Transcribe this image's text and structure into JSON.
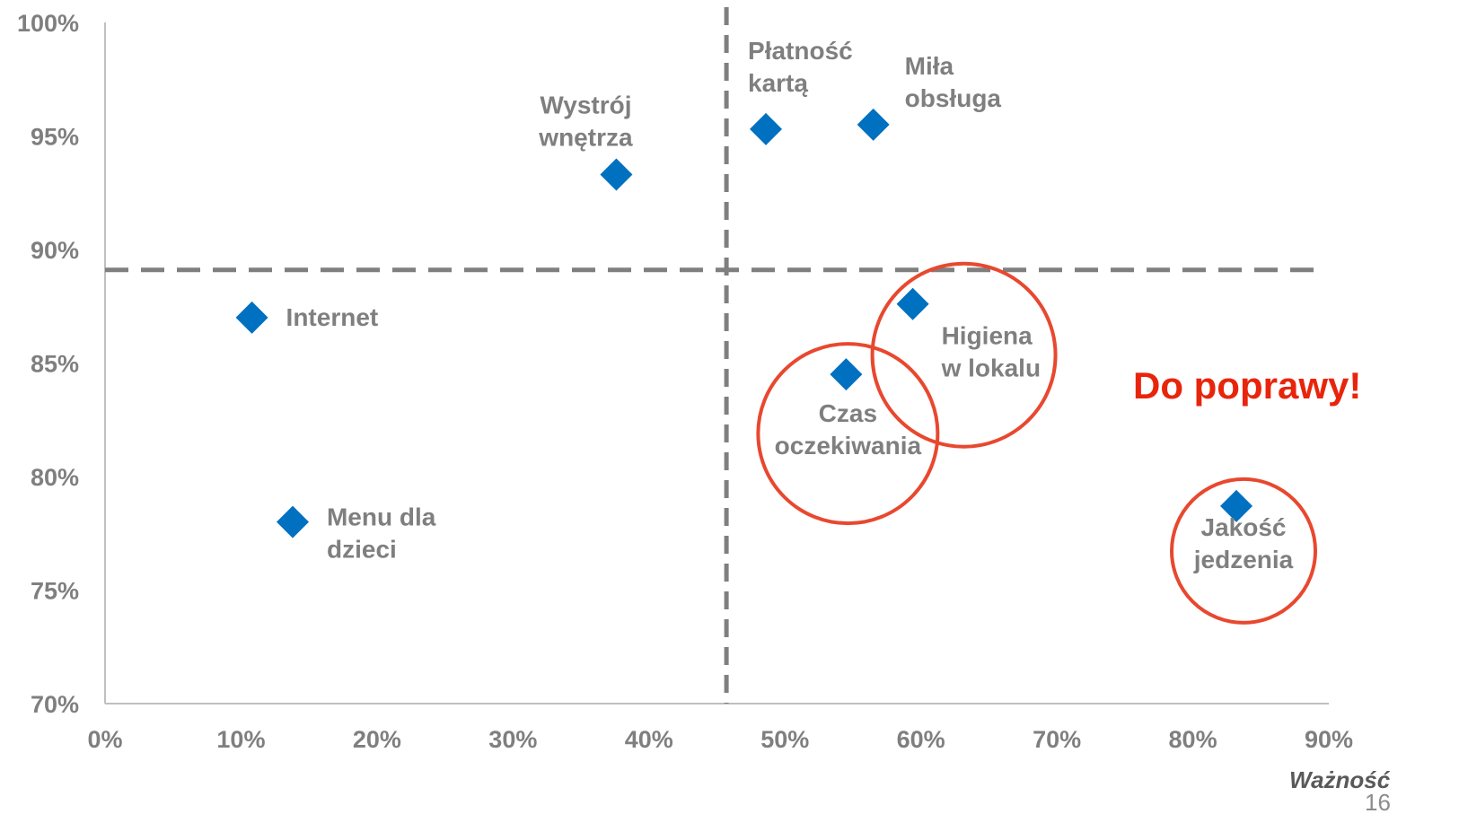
{
  "chart_data": {
    "type": "scatter",
    "title": "",
    "xlabel": "Ważność",
    "ylabel": "",
    "xlim": [
      0,
      90
    ],
    "ylim": [
      70,
      100
    ],
    "x_ticks": [
      "0%",
      "10%",
      "20%",
      "30%",
      "40%",
      "50%",
      "60%",
      "70%",
      "80%",
      "90%"
    ],
    "y_ticks": [
      "70%",
      "75%",
      "80%",
      "85%",
      "90%",
      "95%",
      "100%"
    ],
    "marker": "diamond",
    "colors": {
      "marker": "#0070c0",
      "circle": "#e8482f",
      "callout": "#e8250c",
      "reference_line": "#7f7f7f",
      "text": "#7f7f7f"
    },
    "reference_lines": {
      "x": 45.7,
      "y": 89.1
    },
    "points": [
      {
        "label": [
          "Wystrój",
          "wnętrza"
        ],
        "x": 37.6,
        "y": 93.3,
        "highlighted": false
      },
      {
        "label": [
          "Płatność",
          "kartą"
        ],
        "x": 48.6,
        "y": 95.3,
        "highlighted": false
      },
      {
        "label": [
          "Miła",
          "obsługa"
        ],
        "x": 56.5,
        "y": 95.5,
        "highlighted": false
      },
      {
        "label": [
          "Internet"
        ],
        "x": 10.8,
        "y": 87.0,
        "highlighted": false
      },
      {
        "label": [
          "Menu dla",
          "dzieci"
        ],
        "x": 13.8,
        "y": 78.0,
        "highlighted": false
      },
      {
        "label": [
          "Higiena",
          "w lokalu"
        ],
        "x": 59.4,
        "y": 87.6,
        "highlighted": true
      },
      {
        "label": [
          "Czas",
          "oczekiwania"
        ],
        "x": 54.5,
        "y": 84.5,
        "highlighted": true
      },
      {
        "label": [
          "Jakość",
          "jedzenia"
        ],
        "x": 83.2,
        "y": 78.7,
        "highlighted": true
      }
    ],
    "annotation": "Do poprawy!"
  },
  "page_number": "16"
}
